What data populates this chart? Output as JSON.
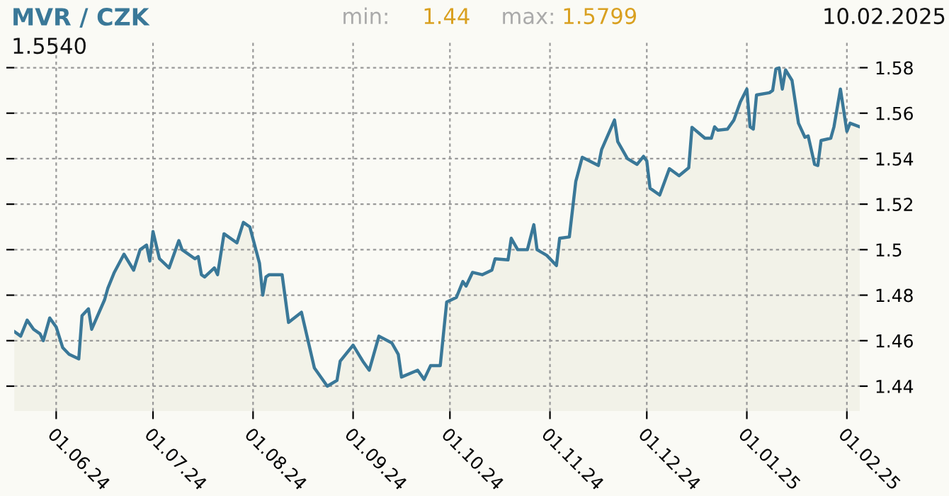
{
  "chart_data": {
    "type": "area",
    "title": "MVR / CZK",
    "annotations": [
      "min:",
      "1.44",
      "max:",
      "1.5799",
      "10.02.2025",
      "1.5540"
    ],
    "x": [
      "2024-05-19",
      "2024-05-21",
      "2024-05-23",
      "2024-05-25",
      "2024-05-27",
      "2024-05-28",
      "2024-05-30",
      "2024-06-01",
      "2024-06-03",
      "2024-06-05",
      "2024-06-08",
      "2024-06-09",
      "2024-06-11",
      "2024-06-12",
      "2024-06-16",
      "2024-06-17",
      "2024-06-19",
      "2024-06-22",
      "2024-06-25",
      "2024-06-27",
      "2024-06-29",
      "2024-06-30",
      "2024-07-01",
      "2024-07-03",
      "2024-07-06",
      "2024-07-09",
      "2024-07-10",
      "2024-07-14",
      "2024-07-15",
      "2024-07-16",
      "2024-07-17",
      "2024-07-20",
      "2024-07-21",
      "2024-07-23",
      "2024-07-27",
      "2024-07-29",
      "2024-07-31",
      "2024-08-03",
      "2024-08-04",
      "2024-08-05",
      "2024-08-06",
      "2024-08-10",
      "2024-08-12",
      "2024-08-16",
      "2024-08-20",
      "2024-08-24",
      "2024-08-27",
      "2024-08-28",
      "2024-09-01",
      "2024-09-04",
      "2024-09-06",
      "2024-09-09",
      "2024-09-13",
      "2024-09-15",
      "2024-09-16",
      "2024-09-21",
      "2024-09-23",
      "2024-09-25",
      "2024-09-28",
      "2024-09-30",
      "2024-10-03",
      "2024-10-05",
      "2024-10-06",
      "2024-10-08",
      "2024-10-11",
      "2024-10-14",
      "2024-10-15",
      "2024-10-19",
      "2024-10-20",
      "2024-10-22",
      "2024-10-25",
      "2024-10-27",
      "2024-10-28",
      "2024-10-31",
      "2024-11-03",
      "2024-11-04",
      "2024-11-07",
      "2024-11-09",
      "2024-11-11",
      "2024-11-16",
      "2024-11-17",
      "2024-11-21",
      "2024-11-22",
      "2024-11-25",
      "2024-11-28",
      "2024-11-30",
      "2024-12-01",
      "2024-12-02",
      "2024-12-05",
      "2024-12-08",
      "2024-12-11",
      "2024-12-14",
      "2024-12-15",
      "2024-12-19",
      "2024-12-21",
      "2024-12-22",
      "2024-12-23",
      "2024-12-26",
      "2024-12-28",
      "2024-12-30",
      "2025-01-01",
      "2025-01-02",
      "2025-01-03",
      "2025-01-04",
      "2025-01-08",
      "2025-01-09",
      "2025-01-10",
      "2025-01-11",
      "2025-01-12",
      "2025-01-13",
      "2025-01-15",
      "2025-01-17",
      "2025-01-19",
      "2025-01-20",
      "2025-01-22",
      "2025-01-23",
      "2025-01-24",
      "2025-01-27",
      "2025-01-28",
      "2025-01-30",
      "2025-02-01",
      "2025-02-02",
      "2025-02-05"
    ],
    "series": [
      {
        "color": "#3a7898",
        "values": [
          1.464,
          1.462,
          1.469,
          1.465,
          1.463,
          1.46,
          1.47,
          1.466,
          1.457,
          1.454,
          1.452,
          1.471,
          1.474,
          1.465,
          1.478,
          1.483,
          1.49,
          1.498,
          1.491,
          1.5,
          1.502,
          1.495,
          1.508,
          1.496,
          1.492,
          1.504,
          1.5,
          1.496,
          1.497,
          1.489,
          1.488,
          1.492,
          1.489,
          1.507,
          1.503,
          1.512,
          1.51,
          1.494,
          1.48,
          1.488,
          1.489,
          1.489,
          1.468,
          1.4725,
          1.448,
          1.44,
          1.4425,
          1.451,
          1.458,
          1.451,
          1.447,
          1.462,
          1.459,
          1.454,
          1.444,
          1.447,
          1.443,
          1.449,
          1.449,
          1.477,
          1.479,
          1.486,
          1.484,
          1.49,
          1.489,
          1.491,
          1.496,
          1.4955,
          1.505,
          1.5,
          1.5,
          1.511,
          1.5,
          1.4975,
          1.493,
          1.505,
          1.5056,
          1.53,
          1.5406,
          1.537,
          1.544,
          1.557,
          1.5475,
          1.54,
          1.5375,
          1.541,
          1.539,
          1.527,
          1.524,
          1.5356,
          1.5325,
          1.536,
          1.5538,
          1.549,
          1.549,
          1.554,
          1.5525,
          1.553,
          1.557,
          1.565,
          1.5706,
          1.554,
          1.553,
          1.568,
          1.569,
          1.57,
          1.5794,
          1.5799,
          1.5706,
          1.579,
          1.5744,
          1.5556,
          1.5494,
          1.55,
          1.5375,
          1.537,
          1.548,
          1.549,
          1.554,
          1.5706,
          1.552,
          1.5556,
          1.554
        ]
      }
    ],
    "xlim": [
      "2024-05-19",
      "2025-02-05"
    ],
    "xticks": [
      {
        "value": "2024-06-01",
        "label": "01.06.24"
      },
      {
        "value": "2024-07-01",
        "label": "01.07.24"
      },
      {
        "value": "2024-08-01",
        "label": "01.08.24"
      },
      {
        "value": "2024-09-01",
        "label": "01.09.24"
      },
      {
        "value": "2024-10-01",
        "label": "01.10.24"
      },
      {
        "value": "2024-11-01",
        "label": "01.11.24"
      },
      {
        "value": "2024-12-01",
        "label": "01.12.24"
      },
      {
        "value": "2025-01-01",
        "label": "01.01.25"
      },
      {
        "value": "2025-02-01",
        "label": "01.02.25"
      }
    ],
    "ylim": [
      1.429,
      1.591
    ],
    "yticks": [
      1.44,
      1.46,
      1.48,
      {
        "value": 1.5,
        "label": "1.5"
      },
      1.52,
      1.54,
      1.56,
      1.58
    ],
    "grid": true,
    "line_style": "solid"
  }
}
